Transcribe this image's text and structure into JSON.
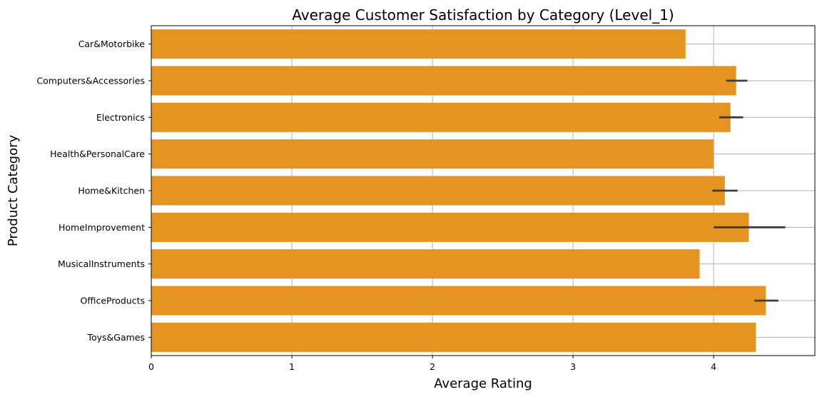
{
  "chart_data": {
    "type": "bar",
    "orientation": "horizontal",
    "title": "Average Customer Satisfaction by Category (Level_1)",
    "xlabel": "Average Rating",
    "ylabel": "Product Category",
    "categories": [
      "Car&Motorbike",
      "Computers&Accessories",
      "Electronics",
      "Health&PersonalCare",
      "Home&Kitchen",
      "HomeImprovement",
      "MusicalInstruments",
      "OfficeProducts",
      "Toys&Games"
    ],
    "values": [
      3.8,
      4.16,
      4.12,
      4.0,
      4.08,
      4.25,
      3.9,
      4.37,
      4.3
    ],
    "error_intervals": [
      null,
      [
        4.09,
        4.24
      ],
      [
        4.04,
        4.21
      ],
      null,
      [
        3.99,
        4.17
      ],
      [
        4.0,
        4.51
      ],
      null,
      [
        4.29,
        4.46
      ],
      null
    ],
    "xlim": [
      0,
      4.72
    ],
    "xticks": [
      0,
      1,
      2,
      3,
      4
    ],
    "xtick_labels": [
      "0",
      "1",
      "2",
      "3",
      "4"
    ],
    "grid": true,
    "bar_color": "#e69421",
    "error_bar_color": "#3d3d3d",
    "grid_color": "#b0b0b0"
  }
}
